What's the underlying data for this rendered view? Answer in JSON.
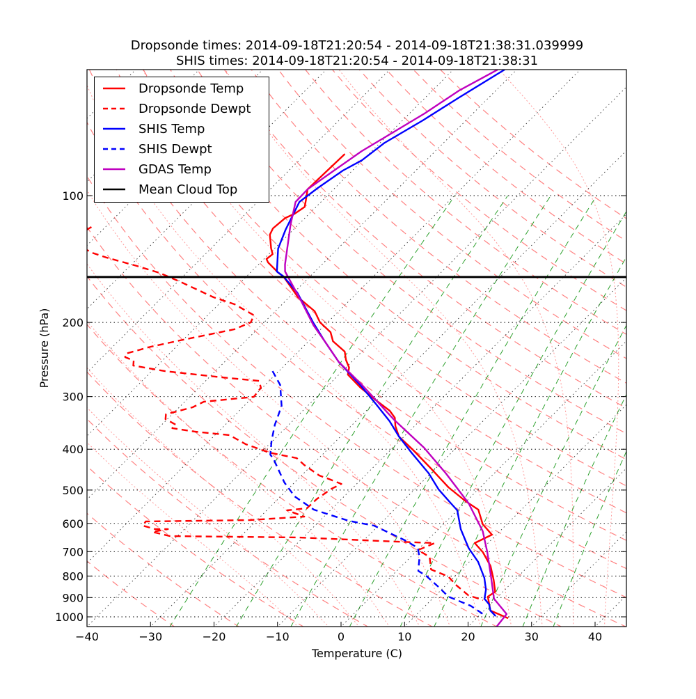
{
  "chart_data": {
    "type": "line",
    "subtype": "skew-t",
    "title_lines": [
      "Dropsonde times: 2014-09-18T21:20:54 - 2014-09-18T21:38:31.039999",
      "SHIS times: 2014-09-18T21:20:54 - 2014-09-18T21:38:31"
    ],
    "xlabel": "Temperature (C)",
    "ylabel": "Pressure (hPa)",
    "xlim": [
      -40,
      45
    ],
    "ylim": [
      1050,
      50
    ],
    "x_ticks": [
      "−40",
      "−30",
      "−20",
      "−10",
      "0",
      "10",
      "20",
      "30",
      "40"
    ],
    "x_tick_values": [
      -40,
      -30,
      -20,
      -10,
      0,
      10,
      20,
      30,
      40
    ],
    "y_ticks": [
      "100",
      "200",
      "300",
      "400",
      "500",
      "600",
      "700",
      "800",
      "900",
      "1000"
    ],
    "y_tick_values": [
      100,
      200,
      300,
      400,
      500,
      600,
      700,
      800,
      900,
      1000
    ],
    "grid": true,
    "legend_position": "top-left",
    "mean_cloud_top_hpa": 156,
    "reference_lines": {
      "isotherms_c": [
        -120,
        -110,
        -100,
        -90,
        -80,
        -70,
        -60,
        -50,
        -40,
        -30,
        -20,
        -10,
        0,
        10,
        20,
        30,
        40
      ],
      "dry_adiabats_theta_c": [
        -30,
        -20,
        -10,
        0,
        10,
        20,
        30,
        40,
        50,
        60,
        70,
        80,
        90,
        100,
        110,
        120,
        130,
        140,
        150,
        160,
        170,
        180,
        190,
        200
      ],
      "moist_adiabats_c": [
        -10,
        -5,
        0,
        5,
        10,
        15,
        20,
        25,
        30,
        35,
        40,
        45
      ],
      "mixing_ratios": [
        0.0004,
        0.001,
        0.002,
        0.004,
        0.007,
        0.01,
        0.016,
        0.024,
        0.032
      ]
    },
    "series": [
      {
        "name": "Dropsonde Temp",
        "color": "#ff0000",
        "style": "solid",
        "points": [
          [
            79.6,
            -73.8
          ],
          [
            96.6,
            -74.1
          ],
          [
            102.3,
            -72.7
          ],
          [
            106.3,
            -71.8
          ],
          [
            110.4,
            -72.3
          ],
          [
            113.0,
            -73.1
          ],
          [
            119.6,
            -73.4
          ],
          [
            123.8,
            -72.9
          ],
          [
            133.6,
            -70.5
          ],
          [
            137.7,
            -69.4
          ],
          [
            141.4,
            -69.6
          ],
          [
            144.1,
            -68.8
          ],
          [
            152.6,
            -65.5
          ],
          [
            155.5,
            -64.2
          ],
          [
            174.3,
            -58.6
          ],
          [
            188.1,
            -53.8
          ],
          [
            199.9,
            -51.2
          ],
          [
            210.9,
            -48.0
          ],
          [
            221.6,
            -46.2
          ],
          [
            234.6,
            -42.7
          ],
          [
            245.5,
            -41.2
          ],
          [
            256.0,
            -39.5
          ],
          [
            265.9,
            -38.6
          ],
          [
            285.9,
            -34.5
          ],
          [
            306.2,
            -30.1
          ],
          [
            324.2,
            -26.3
          ],
          [
            336.8,
            -24.4
          ],
          [
            352.5,
            -23.0
          ],
          [
            373.2,
            -20.8
          ],
          [
            402.7,
            -16.3
          ],
          [
            444.6,
            -10.7
          ],
          [
            492.7,
            -5.0
          ],
          [
            531.6,
            -0.1
          ],
          [
            556.5,
            3.2
          ],
          [
            602.7,
            6.2
          ],
          [
            638.3,
            9.3
          ],
          [
            668.1,
            7.9
          ],
          [
            702.0,
            10.6
          ],
          [
            757.4,
            14.0
          ],
          [
            817.6,
            16.7
          ],
          [
            872.0,
            18.8
          ],
          [
            895.6,
            18.4
          ],
          [
            966.3,
            21.0
          ],
          [
            1007.6,
            25.0
          ]
        ]
      },
      {
        "name": "Dropsonde Dewpt",
        "color": "#ff0000",
        "style": "dashed",
        "points": [
          [
            118.7,
            -102.2
          ],
          [
            127.6,
            -103.6
          ],
          [
            136.6,
            -98.1
          ],
          [
            140.3,
            -95.0
          ],
          [
            146.9,
            -88.9
          ],
          [
            152.6,
            -84.2
          ],
          [
            160.3,
            -79.5
          ],
          [
            174.3,
            -71.9
          ],
          [
            181.1,
            -67.5
          ],
          [
            192.4,
            -62.7
          ],
          [
            199.9,
            -62.1
          ],
          [
            207.7,
            -63.6
          ],
          [
            219.9,
            -70.0
          ],
          [
            228.4,
            -74.0
          ],
          [
            237.3,
            -76.9
          ],
          [
            241.8,
            -76.4
          ],
          [
            246.5,
            -74.5
          ],
          [
            253.2,
            -73.8
          ],
          [
            261.0,
            -67.9
          ],
          [
            270.1,
            -57.9
          ],
          [
            275.3,
            -51.6
          ],
          [
            285.9,
            -50.2
          ],
          [
            300.4,
            -49.9
          ],
          [
            308.5,
            -57.0
          ],
          [
            318.0,
            -57.9
          ],
          [
            330.4,
            -61.0
          ],
          [
            339.3,
            -60.3
          ],
          [
            349.8,
            -57.8
          ],
          [
            356.5,
            -57.8
          ],
          [
            363.3,
            -53.7
          ],
          [
            370.3,
            -47.7
          ],
          [
            389.2,
            -43.7
          ],
          [
            399.7,
            -40.8
          ],
          [
            407.4,
            -38.7
          ],
          [
            419.9,
            -33.5
          ],
          [
            436.2,
            -31.2
          ],
          [
            461.8,
            -27.2
          ],
          [
            470.8,
            -25.1
          ],
          [
            483.5,
            -22.4
          ],
          [
            496.6,
            -23.2
          ],
          [
            525.6,
            -23.9
          ],
          [
            552.2,
            -24.0
          ],
          [
            558.6,
            -26.8
          ],
          [
            578.1,
            -23.1
          ],
          [
            589.2,
            -31.1
          ],
          [
            593.7,
            -47.3
          ],
          [
            607.4,
            -47.1
          ],
          [
            619.0,
            -44.6
          ],
          [
            619.0,
            -42.6
          ],
          [
            628.5,
            -44.6
          ],
          [
            643.2,
            -41.2
          ],
          [
            648.1,
            -20.6
          ],
          [
            663.1,
            -4.3
          ],
          [
            668.1,
            1.6
          ],
          [
            693.9,
            0.1
          ],
          [
            721.0,
            3.0
          ],
          [
            772.0,
            5.2
          ],
          [
            802.0,
            9.0
          ],
          [
            839.5,
            11.5
          ],
          [
            888.8,
            15.1
          ],
          [
            912.6,
            18.2
          ]
        ]
      },
      {
        "name": "SHIS Temp",
        "color": "#0000ff",
        "style": "solid",
        "points": [
          [
            50.2,
            -61.9
          ],
          [
            58.5,
            -64.7
          ],
          [
            66.3,
            -66.8
          ],
          [
            74.9,
            -69.3
          ],
          [
            82.4,
            -70.1
          ],
          [
            87.2,
            -71.5
          ],
          [
            95.9,
            -72.7
          ],
          [
            103.5,
            -73.4
          ],
          [
            111.7,
            -72.3
          ],
          [
            120.5,
            -71.2
          ],
          [
            133.6,
            -69.4
          ],
          [
            151.4,
            -66.0
          ],
          [
            155.5,
            -64.2
          ],
          [
            169.8,
            -59.5
          ],
          [
            199.9,
            -52.3
          ],
          [
            221.6,
            -47.5
          ],
          [
            248.3,
            -42.0
          ],
          [
            281.6,
            -35.0
          ],
          [
            312.0,
            -29.6
          ],
          [
            343.1,
            -24.7
          ],
          [
            373.2,
            -20.8
          ],
          [
            407.4,
            -16.3
          ],
          [
            456.5,
            -10.3
          ],
          [
            498.5,
            -6.2
          ],
          [
            537.7,
            -2.1
          ],
          [
            558.6,
            0.0
          ],
          [
            619.0,
            3.5
          ],
          [
            686.1,
            7.7
          ],
          [
            740.5,
            11.4
          ],
          [
            808.1,
            14.9
          ],
          [
            861.9,
            17.0
          ],
          [
            905.8,
            18.2
          ],
          [
            933.7,
            19.8
          ],
          [
            966.3,
            21.0
          ],
          [
            996.1,
            22.7
          ]
        ]
      },
      {
        "name": "SHIS Dewpt",
        "color": "#0000ff",
        "style": "dashed",
        "points": [
          [
            261.0,
            -51.0
          ],
          [
            281.6,
            -47.6
          ],
          [
            315.6,
            -44.1
          ],
          [
            333.0,
            -43.1
          ],
          [
            349.8,
            -42.2
          ],
          [
            381.8,
            -40.2
          ],
          [
            412.0,
            -38.2
          ],
          [
            423.1,
            -36.9
          ],
          [
            479.8,
            -31.6
          ],
          [
            517.7,
            -27.8
          ],
          [
            556.5,
            -22.7
          ],
          [
            591.4,
            -15.5
          ],
          [
            607.4,
            -10.7
          ],
          [
            660.5,
            -3.2
          ],
          [
            686.1,
            -0.3
          ],
          [
            721.0,
            1.4
          ],
          [
            778.0,
            3.4
          ],
          [
            799.0,
            5.4
          ],
          [
            849.0,
            9.1
          ],
          [
            895.6,
            12.2
          ],
          [
            940.9,
            17.1
          ],
          [
            984.9,
            20.4
          ]
        ]
      },
      {
        "name": "GDAS Temp",
        "color": "#bf00bf",
        "style": "solid",
        "points": [
          [
            50.2,
            -63.0
          ],
          [
            56.3,
            -65.8
          ],
          [
            63.8,
            -67.6
          ],
          [
            72.6,
            -70.1
          ],
          [
            78.4,
            -71.6
          ],
          [
            87.9,
            -73.0
          ],
          [
            96.6,
            -74.1
          ],
          [
            103.5,
            -74.0
          ],
          [
            117.3,
            -71.2
          ],
          [
            145.8,
            -65.8
          ],
          [
            151.4,
            -64.7
          ],
          [
            159.1,
            -62.5
          ],
          [
            178.4,
            -57.4
          ],
          [
            203.0,
            -51.8
          ],
          [
            221.6,
            -47.5
          ],
          [
            248.3,
            -42.0
          ],
          [
            281.6,
            -34.7
          ],
          [
            340.5,
            -24.2
          ],
          [
            396.6,
            -15.1
          ],
          [
            456.5,
            -7.6
          ],
          [
            537.7,
            0.7
          ],
          [
            626.1,
            7.3
          ],
          [
            702.0,
            11.3
          ],
          [
            799.0,
            15.6
          ],
          [
            905.8,
            19.7
          ],
          [
            984.9,
            24.1
          ],
          [
            1054.6,
            24.5
          ]
        ]
      },
      {
        "name": "Mean Cloud Top",
        "color": "#000000",
        "style": "solid"
      }
    ]
  }
}
